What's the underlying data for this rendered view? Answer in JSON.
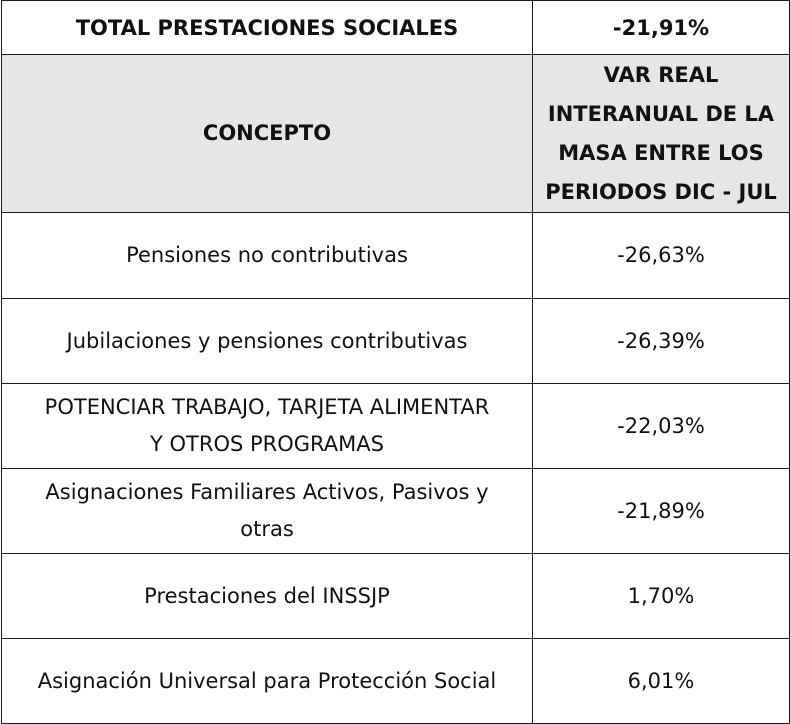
{
  "total": {
    "label": "TOTAL PRESTACIONES SOCIALES",
    "value": "-21,91%"
  },
  "header": {
    "concept": "CONCEPTO",
    "variation_lines": [
      "VAR REAL",
      "INTERANUAL DE LA",
      "MASA ENTRE LOS",
      "PERIODOS DIC - JUL"
    ]
  },
  "rows": [
    {
      "lines": [
        "Pensiones no contributivas"
      ],
      "value": "-26,63%"
    },
    {
      "lines": [
        "Jubilaciones y pensiones contributivas"
      ],
      "value": "-26,39%"
    },
    {
      "lines": [
        "POTENCIAR TRABAJO, TARJETA ALIMENTAR",
        "Y OTROS PROGRAMAS"
      ],
      "value": "-22,03%"
    },
    {
      "lines": [
        "Asignaciones Familiares Activos, Pasivos y",
        "otras"
      ],
      "value": "-21,89%"
    },
    {
      "lines": [
        "Prestaciones del INSSJP"
      ],
      "value": "1,70%"
    },
    {
      "lines": [
        "Asignación Universal para Protección Social"
      ],
      "value": "6,01%"
    }
  ]
}
